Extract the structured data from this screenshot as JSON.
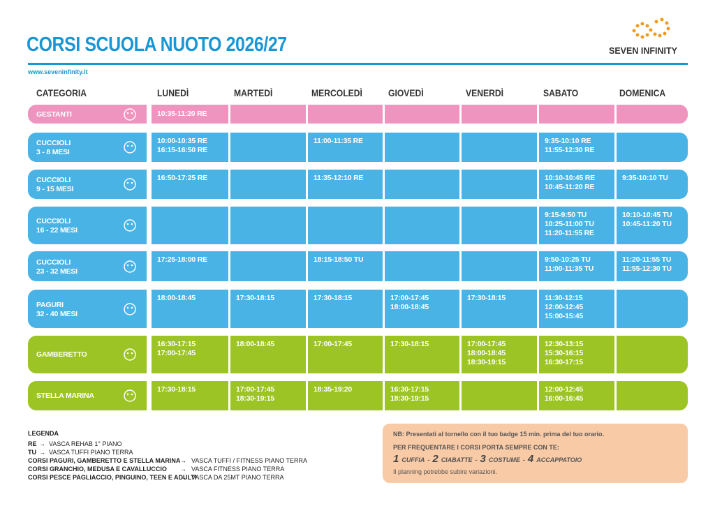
{
  "header": {
    "title": "CORSI SCUOLA NUOTO 2026/27",
    "website": "www.seveninfinity.it",
    "brand": "SEVEN INFINITY"
  },
  "table": {
    "columns": [
      "CATEGORIA",
      "LUNEDÌ",
      "MARTEDÌ",
      "MERCOLEDÌ",
      "GIOVEDÌ",
      "VENERDÌ",
      "SABATO",
      "DOMENICA"
    ],
    "rows": [
      {
        "category": [
          "GESTANTI"
        ],
        "color": "#ef93bf",
        "cells": [
          [
            "10:35-11:20 RE"
          ],
          [],
          [],
          [],
          [],
          [],
          []
        ]
      },
      {
        "category": [
          "CUCCIOLI",
          "3 - 8 MESI"
        ],
        "color": "#49b3e6",
        "cells": [
          [
            "10:00-10:35 RE",
            "16:15-16:50 RE"
          ],
          [],
          [
            "11:00-11:35 RE"
          ],
          [],
          [],
          [
            "9:35-10:10 RE",
            "11:55-12:30 RE"
          ],
          []
        ]
      },
      {
        "category": [
          "CUCCIOLI",
          "9 - 15 MESI"
        ],
        "color": "#49b3e6",
        "cells": [
          [
            "16:50-17:25 RE"
          ],
          [],
          [
            "11:35-12:10 RE"
          ],
          [],
          [],
          [
            "10:10-10:45 RE",
            "10:45-11:20 RE"
          ],
          [
            "9:35-10:10 TU"
          ]
        ]
      },
      {
        "category": [
          "CUCCIOLI",
          "16 - 22 MESI"
        ],
        "color": "#49b3e6",
        "cells": [
          [],
          [],
          [],
          [],
          [],
          [
            "9:15-9:50 TU",
            "10:25-11:00 TU",
            "11:20-11:55 RE"
          ],
          [
            "10:10-10:45 TU",
            "10:45-11:20 TU"
          ]
        ]
      },
      {
        "category": [
          "CUCCIOLI",
          "23 - 32 MESI"
        ],
        "color": "#49b3e6",
        "cells": [
          [
            "17:25-18:00 RE"
          ],
          [],
          [
            "18:15-18:50 TU"
          ],
          [],
          [],
          [
            "9:50-10:25 TU",
            "11:00-11:35 TU"
          ],
          [
            "11:20-11:55 TU",
            "11:55-12:30 TU"
          ]
        ]
      },
      {
        "category": [
          "PAGURI",
          "32 - 40 MESI"
        ],
        "color": "#49b3e6",
        "cells": [
          [
            "18:00-18:45"
          ],
          [
            "17:30-18:15"
          ],
          [
            "17:30-18:15"
          ],
          [
            "17:00-17:45",
            "18:00-18:45"
          ],
          [
            "17:30-18:15"
          ],
          [
            "11:30-12:15",
            "12:00-12:45",
            "15:00-15:45"
          ],
          []
        ]
      },
      {
        "category": [
          "GAMBERETTO"
        ],
        "color": "#9cc425",
        "cells": [
          [
            "16:30-17:15",
            "17:00-17:45"
          ],
          [
            "18:00-18:45"
          ],
          [
            "17:00-17:45"
          ],
          [
            "17:30-18:15"
          ],
          [
            "17:00-17:45",
            "18:00-18:45",
            "18:30-19:15"
          ],
          [
            "12:30-13:15",
            "15:30-16:15",
            "16:30-17:15"
          ],
          []
        ]
      },
      {
        "category": [
          "STELLA MARINA"
        ],
        "color": "#9cc425",
        "cells": [
          [
            "17:30-18:15"
          ],
          [
            "17:00-17:45",
            "18:30-19:15"
          ],
          [
            "18:35-19:20"
          ],
          [
            "16:30-17:15",
            "18:30-19:15"
          ],
          [],
          [
            "12:00-12:45",
            "16:00-16:45"
          ],
          []
        ]
      }
    ]
  },
  "legend": {
    "title": "LEGENDA",
    "items": [
      {
        "term": "RE",
        "text": "VASCA REHAB 1° PIANO"
      },
      {
        "term": "TU",
        "text": "VASCA TUFFI PIANO TERRA"
      },
      {
        "term": "CORSI PAGURI, GAMBERETTO E STELLA MARINA",
        "text": "VASCA TUFFI / FITNESS PIANO TERRA"
      },
      {
        "term": "CORSI GRANCHIO, MEDUSA E CAVALLUCCIO",
        "text": "VASCA FITNESS PIANO TERRA"
      },
      {
        "term": "CORSI PESCE PAGLIACCIO, PINGUINO, TEEN E ADULTI",
        "text": "VASCA DA 25MT PIANO TERRA"
      }
    ]
  },
  "notes": {
    "nb": "NB: Presentati al tornello con il tuo badge 15 min. prima del tuo orario.",
    "bring_title": "PER FREQUENTARE I CORSI PORTA SEMPRE CON TE:",
    "items": [
      {
        "number": 1,
        "label": "CUFFIA"
      },
      {
        "number": 2,
        "label": "CIABATTE"
      },
      {
        "number": 3,
        "label": "COSTUME"
      },
      {
        "number": 4,
        "label": "ACCAPPATOIO"
      }
    ],
    "footer": "Il planning potrebbe subire variazioni."
  }
}
